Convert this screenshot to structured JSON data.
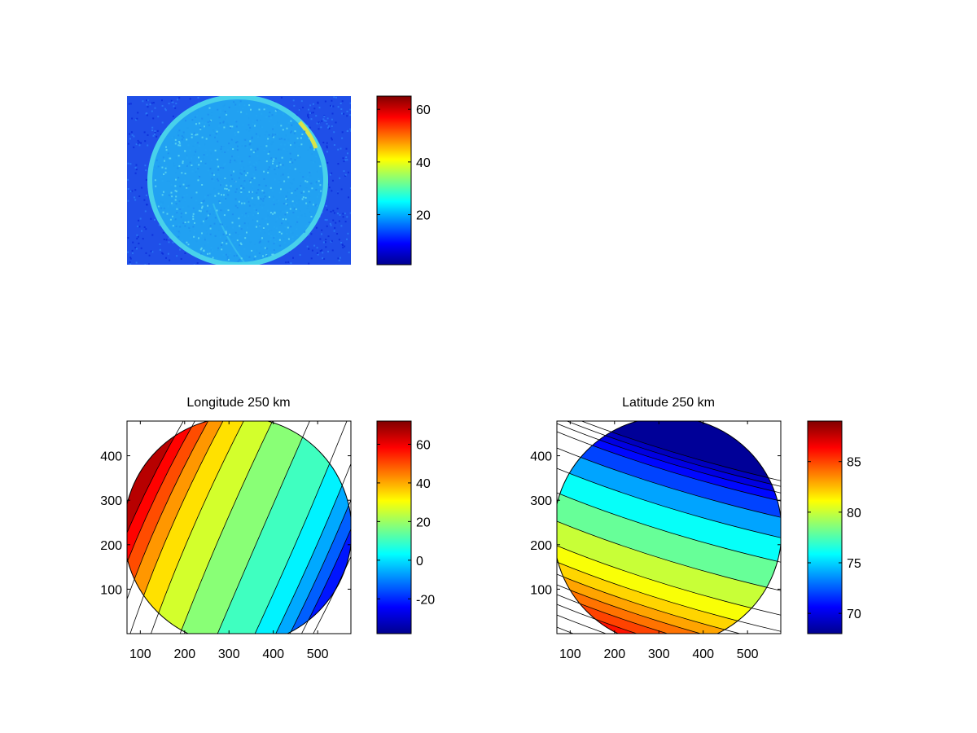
{
  "figure": {
    "background": "#ffffff",
    "colormap": "jet"
  },
  "chart_data": [
    {
      "type": "heatmap",
      "title": "",
      "description_visible": "noisy camera image of a circular disk",
      "colors": {
        "background_level": 5,
        "disk_level": 22,
        "rim_level": 28,
        "bright_arc_level": 45
      },
      "colorbar": {
        "min": 1,
        "max": 65,
        "ticks": [
          20,
          40,
          60
        ],
        "tick_labels": [
          "20",
          "40",
          "60"
        ]
      }
    },
    {
      "type": "heatmap",
      "title": "Longitude 250 km",
      "xlim": [
        70,
        575
      ],
      "ylim": [
        0,
        478
      ],
      "x_ticks": [
        100,
        200,
        300,
        400,
        500
      ],
      "x_tick_labels": [
        "100",
        "200",
        "300",
        "400",
        "500"
      ],
      "y_ticks": [
        100,
        200,
        300,
        400
      ],
      "y_tick_labels": [
        "100",
        "200",
        "300",
        "400"
      ],
      "colorbar": {
        "min": -38,
        "max": 72,
        "ticks": [
          -20,
          0,
          20,
          40,
          60
        ],
        "tick_labels": [
          "-20",
          "0",
          "20",
          "40",
          "60"
        ]
      },
      "contour_levels": [
        -35,
        -30,
        -20,
        -10,
        0,
        10,
        20,
        30,
        40,
        50,
        55,
        60,
        65,
        70
      ]
    },
    {
      "type": "heatmap",
      "title": "Latitude 250 km",
      "xlim": [
        70,
        575
      ],
      "ylim": [
        0,
        478
      ],
      "x_ticks": [
        100,
        200,
        300,
        400,
        500
      ],
      "x_tick_labels": [
        "100",
        "200",
        "300",
        "400",
        "500"
      ],
      "y_ticks": [
        100,
        200,
        300,
        400
      ],
      "y_tick_labels": [
        "100",
        "200",
        "300",
        "400"
      ],
      "colorbar": {
        "min": 68,
        "max": 89,
        "ticks": [
          70,
          75,
          80,
          85
        ],
        "tick_labels": [
          "70",
          "75",
          "80",
          "85"
        ]
      },
      "contour_levels": [
        68.5,
        69,
        69.5,
        70,
        71,
        72,
        74,
        76,
        78,
        80,
        81,
        82,
        83,
        84,
        85,
        86,
        87,
        88
      ]
    }
  ]
}
